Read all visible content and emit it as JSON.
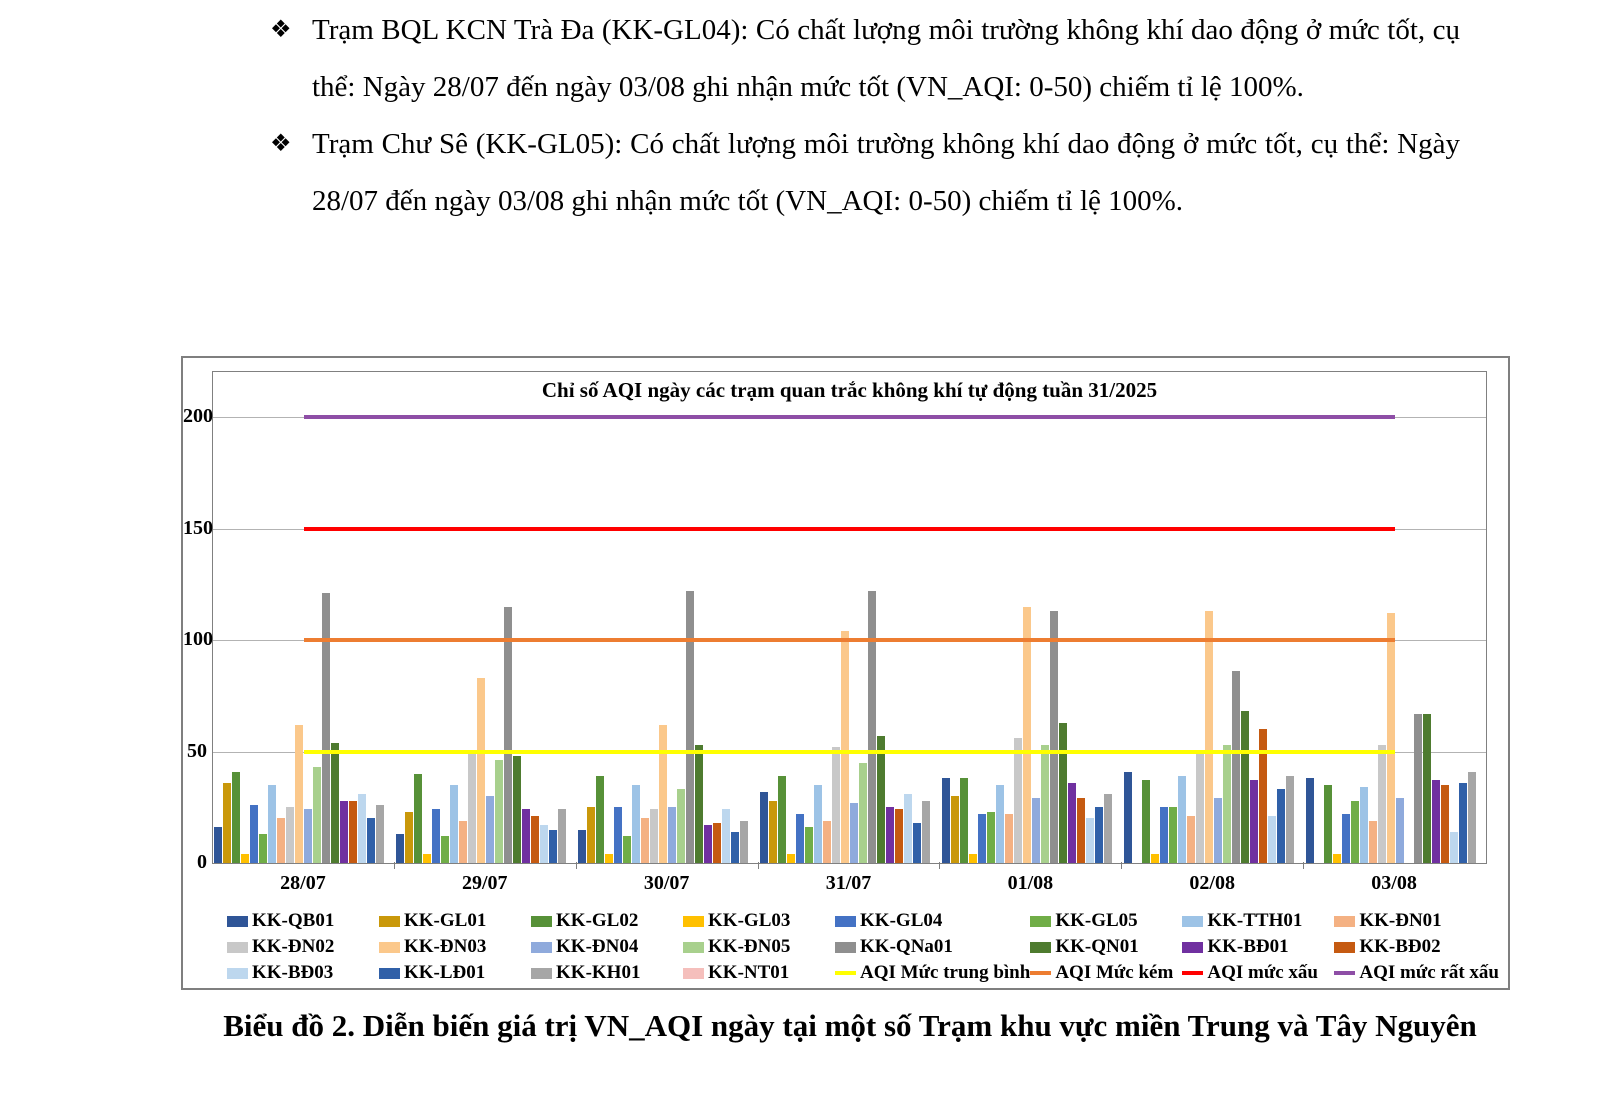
{
  "document": {
    "bullets": [
      {
        "marker": "❖",
        "text": "Trạm BQL KCN Trà Đa (KK-GL04): Có chất lượng môi trường không khí dao động ở mức tốt, cụ thể: Ngày 28/07 đến ngày 03/08 ghi nhận mức tốt (VN_AQI: 0-50) chiếm tỉ lệ 100%."
      },
      {
        "marker": "❖",
        "text": "Trạm Chư Sê (KK-GL05): Có chất lượng môi trường không khí dao động ở mức tốt, cụ thể: Ngày 28/07 đến ngày 03/08 ghi nhận mức tốt (VN_AQI: 0-50) chiếm tỉ lệ 100%."
      }
    ],
    "caption": "Biểu đồ 2. Diễn biến giá trị VN_AQI ngày tại một số Trạm khu vực miền Trung và Tây Nguyên"
  },
  "chart_data": {
    "type": "bar",
    "title": "Chỉ số AQI ngày các trạm quan trắc không khí tự động tuần 31/2025",
    "xlabel": "",
    "ylabel": "",
    "ylim": [
      0,
      200
    ],
    "yticks": [
      0,
      50,
      100,
      150,
      200
    ],
    "grid": true,
    "legend_position": "bottom",
    "categories": [
      "28/07",
      "29/07",
      "30/07",
      "31/07",
      "01/08",
      "02/08",
      "03/08"
    ],
    "series": [
      {
        "name": "KK-QB01",
        "color": "#2F5597",
        "values": [
          16,
          13,
          15,
          32,
          38,
          41,
          38
        ]
      },
      {
        "name": "KK-GL01",
        "color": "#C9980A",
        "values": [
          36,
          23,
          25,
          28,
          30,
          null,
          null
        ]
      },
      {
        "name": "KK-GL02",
        "color": "#579138",
        "values": [
          41,
          40,
          39,
          39,
          38,
          37,
          35
        ]
      },
      {
        "name": "KK-GL03",
        "color": "#FFC000",
        "values": [
          4,
          4,
          4,
          4,
          4,
          4,
          4
        ]
      },
      {
        "name": "KK-GL04",
        "color": "#4472C4",
        "values": [
          26,
          24,
          25,
          22,
          22,
          25,
          22
        ]
      },
      {
        "name": "KK-GL05",
        "color": "#70AD47",
        "values": [
          13,
          12,
          12,
          16,
          23,
          25,
          28
        ]
      },
      {
        "name": "KK-TTH01",
        "color": "#9DC3E6",
        "values": [
          35,
          35,
          35,
          35,
          35,
          39,
          34
        ]
      },
      {
        "name": "KK-ĐN01",
        "color": "#F4B183",
        "values": [
          20,
          19,
          20,
          19,
          22,
          21,
          19
        ]
      },
      {
        "name": "KK-ĐN02",
        "color": "#C8C8C8",
        "values": [
          25,
          49,
          24,
          52,
          56,
          49,
          53
        ]
      },
      {
        "name": "KK-ĐN03",
        "color": "#FBC88B",
        "values": [
          62,
          83,
          62,
          104,
          115,
          113,
          112
        ]
      },
      {
        "name": "KK-ĐN04",
        "color": "#8FAADC",
        "values": [
          24,
          30,
          25,
          27,
          29,
          29,
          29
        ]
      },
      {
        "name": "KK-ĐN05",
        "color": "#A8D08D",
        "values": [
          43,
          46,
          33,
          45,
          53,
          53,
          null
        ]
      },
      {
        "name": "KK-QNa01",
        "color": "#8F8F8F",
        "values": [
          121,
          115,
          122,
          122,
          113,
          86,
          67
        ]
      },
      {
        "name": "KK-QN01",
        "color": "#4E7B2F",
        "values": [
          54,
          48,
          53,
          57,
          63,
          68,
          67
        ]
      },
      {
        "name": "KK-BĐ01",
        "color": "#7030A0",
        "values": [
          28,
          24,
          17,
          25,
          36,
          37,
          37
        ]
      },
      {
        "name": "KK-BĐ02",
        "color": "#C55A11",
        "values": [
          28,
          21,
          18,
          24,
          29,
          60,
          35
        ]
      },
      {
        "name": "KK-BĐ03",
        "color": "#BDD7EE",
        "values": [
          31,
          17,
          24,
          31,
          20,
          21,
          14
        ]
      },
      {
        "name": "KK-LĐ01",
        "color": "#3060A8",
        "values": [
          20,
          15,
          14,
          18,
          25,
          33,
          36
        ]
      },
      {
        "name": "KK-KH01",
        "color": "#A6A6A6",
        "values": [
          26,
          24,
          19,
          28,
          31,
          39,
          41
        ]
      },
      {
        "name": "KK-NT01",
        "color": "#F5BFBC",
        "values": [
          null,
          null,
          null,
          null,
          null,
          null,
          null
        ]
      }
    ],
    "thresholds": [
      {
        "name": "AQI Mức trung bình",
        "color": "#FFFF00",
        "value": 50
      },
      {
        "name": "AQI Mức kém",
        "color": "#ED7D31",
        "value": 100
      },
      {
        "name": "AQI mức xấu",
        "color": "#FF0000",
        "value": 150
      },
      {
        "name": "AQI mức rất xấu",
        "color": "#8E4EA6",
        "value": 200
      }
    ]
  }
}
